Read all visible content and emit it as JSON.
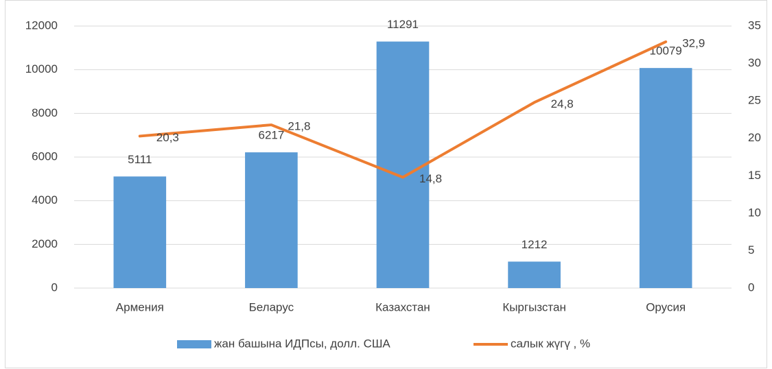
{
  "chart_data": {
    "type": "bar-line",
    "categories": [
      "Армения",
      "Беларус",
      "Казахстан",
      "Кыргызстан",
      "Орусия"
    ],
    "series": [
      {
        "name": "жан башына ИДПсы, долл. США",
        "type": "bar",
        "color": "#5b9bd5",
        "values": [
          5111,
          6217,
          11291,
          1212,
          10079
        ]
      },
      {
        "name": "салык жүгү , %",
        "type": "line",
        "axis": "y2",
        "color": "#ed7d31",
        "values": [
          20.3,
          21.8,
          14.8,
          24.8,
          32.9
        ],
        "value_labels": [
          "20,3",
          "21,8",
          "14,8",
          "24,8",
          "32,9"
        ]
      }
    ],
    "ylim": [
      0,
      12000
    ],
    "yticks": [
      0,
      2000,
      4000,
      6000,
      8000,
      10000,
      12000
    ],
    "y2lim": [
      0,
      35
    ],
    "y2ticks": [
      0,
      5,
      10,
      15,
      20,
      25,
      30,
      35
    ],
    "grid": true,
    "legend": "bottom"
  }
}
